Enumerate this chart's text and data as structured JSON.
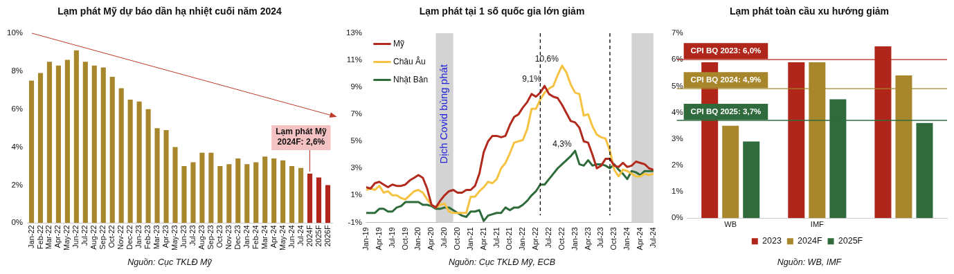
{
  "chart_data": [
    {
      "type": "bar",
      "title": "Lạm phát Mỹ dự báo dần hạ nhiệt cuối năm 2024",
      "categories": [
        "Jan-22",
        "Feb-22",
        "Mar-22",
        "Apr-22",
        "May-22",
        "Jun-22",
        "Jul-22",
        "Aug-22",
        "Sep-22",
        "Oct-22",
        "Nov-22",
        "Dec-22",
        "Jan-23",
        "Feb-23",
        "Mar-23",
        "Apr-23",
        "May-23",
        "Jun-23",
        "Jul-23",
        "Aug-23",
        "Sep-23",
        "Oct-23",
        "Nov-23",
        "Dec-23",
        "Jan-24",
        "Feb-24",
        "Mar-24",
        "Apr-24",
        "May-24",
        "Jun-24",
        "Jul-24",
        "2024F",
        "2025F",
        "2026F"
      ],
      "values": [
        7.5,
        7.9,
        8.5,
        8.3,
        8.6,
        9.1,
        8.5,
        8.3,
        8.2,
        7.7,
        7.1,
        6.5,
        6.4,
        6.0,
        5.0,
        4.9,
        4.0,
        3.0,
        3.2,
        3.7,
        3.7,
        3.0,
        3.1,
        3.4,
        3.1,
        3.2,
        3.5,
        3.4,
        3.3,
        3.0,
        2.9,
        2.6,
        2.4,
        2.0
      ],
      "colors": [
        "#a8862c",
        "#a8862c",
        "#a8862c",
        "#a8862c",
        "#a8862c",
        "#a8862c",
        "#a8862c",
        "#a8862c",
        "#a8862c",
        "#a8862c",
        "#a8862c",
        "#a8862c",
        "#a8862c",
        "#a8862c",
        "#a8862c",
        "#a8862c",
        "#a8862c",
        "#a8862c",
        "#a8862c",
        "#a8862c",
        "#a8862c",
        "#a8862c",
        "#a8862c",
        "#a8862c",
        "#a8862c",
        "#a8862c",
        "#a8862c",
        "#a8862c",
        "#a8862c",
        "#a8862c",
        "#a8862c",
        "#b0261b",
        "#b0261b",
        "#b0261b"
      ],
      "ylim": [
        0,
        10
      ],
      "yticks": [
        {
          "value": 0,
          "label": "0%"
        },
        {
          "value": 2,
          "label": "2%"
        },
        {
          "value": 4,
          "label": "4%"
        },
        {
          "value": 6,
          "label": "6%"
        },
        {
          "value": 8,
          "label": "8%"
        },
        {
          "value": 10,
          "label": "10%"
        }
      ],
      "annotations": [
        {
          "text": "Lạm phát Mỹ 2024F: 2,6%",
          "x": "2024F",
          "y": 2.6
        },
        "Nguồn: Cục TKLĐ Mỹ"
      ]
    },
    {
      "type": "line",
      "title": "Lạm phát tại 1 số quốc gia lớn giảm",
      "x": [
        "2019-01",
        "2019-02",
        "2019-03",
        "2019-04",
        "2019-05",
        "2019-06",
        "2019-07",
        "2019-08",
        "2019-09",
        "2019-10",
        "2019-11",
        "2019-12",
        "2020-01",
        "2020-02",
        "2020-03",
        "2020-04",
        "2020-05",
        "2020-06",
        "2020-07",
        "2020-08",
        "2020-09",
        "2020-10",
        "2020-11",
        "2020-12",
        "2021-01",
        "2021-02",
        "2021-03",
        "2021-04",
        "2021-05",
        "2021-06",
        "2021-07",
        "2021-08",
        "2021-09",
        "2021-10",
        "2021-11",
        "2021-12",
        "2022-01",
        "2022-02",
        "2022-03",
        "2022-04",
        "2022-05",
        "2022-06",
        "2022-07",
        "2022-08",
        "2022-09",
        "2022-10",
        "2022-11",
        "2022-12",
        "2023-01",
        "2023-02",
        "2023-03",
        "2023-04",
        "2023-05",
        "2023-06",
        "2023-07",
        "2023-08",
        "2023-09",
        "2023-10",
        "2023-11",
        "2023-12",
        "2024-01",
        "2024-02",
        "2024-03",
        "2024-04",
        "2024-05",
        "2024-06",
        "2024-07"
      ],
      "series": [
        {
          "name": "Mỹ",
          "color": "#b22a1e",
          "values": [
            1.6,
            1.5,
            1.9,
            2.0,
            1.8,
            1.6,
            1.8,
            1.7,
            1.7,
            1.8,
            2.1,
            2.3,
            2.5,
            2.3,
            1.5,
            0.3,
            0.1,
            0.6,
            1.0,
            1.3,
            1.4,
            1.2,
            1.2,
            1.4,
            1.4,
            1.7,
            2.6,
            4.2,
            5.0,
            5.4,
            5.4,
            5.3,
            5.4,
            6.2,
            6.8,
            7.0,
            7.5,
            7.9,
            8.5,
            8.3,
            8.6,
            9.1,
            8.5,
            8.3,
            8.2,
            7.7,
            7.1,
            6.5,
            6.4,
            6.0,
            5.0,
            4.9,
            4.0,
            3.0,
            3.2,
            3.7,
            3.7,
            3.2,
            3.1,
            3.4,
            3.1,
            3.2,
            3.5,
            3.4,
            3.3,
            3.0,
            2.9
          ]
        },
        {
          "name": "Châu Âu",
          "color": "#f5c242",
          "values": [
            1.4,
            1.5,
            1.4,
            1.7,
            1.2,
            1.3,
            1.0,
            1.0,
            0.8,
            0.7,
            1.0,
            1.3,
            1.4,
            1.2,
            0.7,
            0.3,
            0.1,
            0.3,
            0.4,
            -0.2,
            -0.3,
            -0.3,
            -0.3,
            -0.3,
            0.9,
            0.9,
            1.3,
            1.6,
            2.0,
            1.9,
            2.2,
            3.0,
            3.4,
            4.1,
            4.9,
            5.0,
            5.1,
            5.9,
            7.4,
            7.4,
            8.1,
            8.6,
            8.9,
            9.1,
            9.9,
            10.6,
            10.1,
            9.2,
            8.6,
            8.5,
            6.9,
            7.0,
            6.1,
            5.5,
            5.3,
            5.2,
            4.3,
            2.9,
            2.4,
            2.9,
            2.8,
            2.6,
            2.4,
            2.4,
            2.6,
            2.5,
            2.6
          ]
        },
        {
          "name": "Nhật Bản",
          "color": "#2e6b3a",
          "values": [
            -0.3,
            -0.3,
            -0.3,
            0.0,
            0.0,
            -0.2,
            -0.2,
            0.1,
            0.2,
            0.5,
            0.5,
            0.5,
            0.5,
            0.3,
            0.3,
            0.2,
            0.0,
            0.0,
            0.1,
            0.1,
            -0.1,
            -0.3,
            -0.5,
            -0.6,
            -0.2,
            -0.2,
            -0.1,
            -0.9,
            -0.5,
            -0.4,
            -0.3,
            -0.3,
            0.1,
            -0.1,
            0.1,
            0.1,
            0.3,
            0.6,
            1.0,
            1.3,
            1.8,
            1.8,
            2.2,
            2.6,
            3.0,
            3.3,
            3.6,
            3.9,
            4.3,
            3.3,
            3.2,
            3.6,
            3.2,
            3.3,
            3.3,
            3.2,
            3.0,
            3.3,
            2.9,
            2.6,
            2.2,
            2.8,
            2.7,
            2.5,
            2.8,
            2.8,
            2.8
          ]
        }
      ],
      "xlim": [
        "2019-01",
        "2024-07"
      ],
      "xticks": [
        {
          "value": "2019-01",
          "label": "Jan-19"
        },
        {
          "value": "2019-04",
          "label": "Apr-19"
        },
        {
          "value": "2019-07",
          "label": "Jul-19"
        },
        {
          "value": "2019-10",
          "label": "Oct-19"
        },
        {
          "value": "2020-01",
          "label": "Jan-20"
        },
        {
          "value": "2020-04",
          "label": "Apr-20"
        },
        {
          "value": "2020-07",
          "label": "Jul-20"
        },
        {
          "value": "2020-10",
          "label": "Oct-20"
        },
        {
          "value": "2021-01",
          "label": "Jan-21"
        },
        {
          "value": "2021-04",
          "label": "Apr-21"
        },
        {
          "value": "2021-07",
          "label": "Jul-21"
        },
        {
          "value": "2021-10",
          "label": "Oct-21"
        },
        {
          "value": "2022-01",
          "label": "Jan-22"
        },
        {
          "value": "2022-04",
          "label": "Apr-22"
        },
        {
          "value": "2022-07",
          "label": "Jul-22"
        },
        {
          "value": "2022-10",
          "label": "Oct-22"
        },
        {
          "value": "2023-01",
          "label": "Jan-23"
        },
        {
          "value": "2023-04",
          "label": "Apr-23"
        },
        {
          "value": "2023-07",
          "label": "Jul-23"
        },
        {
          "value": "2023-10",
          "label": "Oct-23"
        },
        {
          "value": "2024-01",
          "label": "Jan-24"
        },
        {
          "value": "2024-04",
          "label": "Apr-24"
        },
        {
          "value": "2024-07",
          "label": "Jul-24"
        }
      ],
      "ylim": [
        -1,
        13
      ],
      "yticks": [
        {
          "value": -1,
          "label": "-1%"
        },
        {
          "value": 1,
          "label": "1%"
        },
        {
          "value": 3,
          "label": "3%"
        },
        {
          "value": 5,
          "label": "5%"
        },
        {
          "value": 7,
          "label": "7%"
        },
        {
          "value": 9,
          "label": "9%"
        },
        {
          "value": 11,
          "label": "11%"
        },
        {
          "value": 13,
          "label": "13%"
        }
      ],
      "legend": "top left",
      "bands": [
        {
          "axis": "x",
          "from": "2020-05",
          "to": "2020-09",
          "label": "Dịch Covid bùng phát",
          "color": "#d3d3d3"
        },
        {
          "axis": "x",
          "from": "2024-02",
          "to": "2024-07",
          "color": "#d3d3d3"
        }
      ],
      "ref_lines": [
        {
          "axis": "x",
          "value": "2022-05",
          "color": "#000000",
          "line_style": "dashed"
        },
        {
          "axis": "x",
          "value": "2023-09",
          "color": "#000000",
          "line_style": "dashed"
        }
      ],
      "annotations": [
        {
          "text": "9,1%",
          "x": "2022-06",
          "y": 9.1
        },
        {
          "text": "10,6%",
          "x": "2022-10",
          "y": 10.6
        },
        {
          "text": "4,3%",
          "x": "2023-01",
          "y": 4.3
        },
        "Nguồn: Cục TKLĐ Mỹ, ECB"
      ]
    },
    {
      "type": "bar",
      "title": "Lạm phát toàn cầu xu hướng giảm",
      "categories": [
        "WB",
        "IMF",
        null
      ],
      "series": [
        {
          "name": "2023",
          "color": "#b0261b",
          "values": [
            5.9,
            5.9,
            6.5
          ]
        },
        {
          "name": "2024F",
          "color": "#a8862c",
          "values": [
            3.5,
            5.9,
            5.4
          ]
        },
        {
          "name": "2025F",
          "color": "#2f6b3c",
          "values": [
            2.9,
            4.5,
            3.6
          ]
        }
      ],
      "ylim": [
        0,
        7
      ],
      "yticks": [
        {
          "value": 0,
          "label": "0%"
        },
        {
          "value": 1,
          "label": "1%"
        },
        {
          "value": 2,
          "label": "2%"
        },
        {
          "value": 3,
          "label": "3%"
        },
        {
          "value": 4,
          "label": "4%"
        },
        {
          "value": 5,
          "label": "5%"
        },
        {
          "value": 6,
          "label": "6%"
        },
        {
          "value": 7,
          "label": "7%"
        }
      ],
      "legend": "bottom",
      "ref_lines": [
        {
          "axis": "y",
          "value": 6.0,
          "label": "CPI BQ 2023: 6,0%",
          "color": "#b0261b"
        },
        {
          "axis": "y",
          "value": 4.9,
          "label": "CPI BQ 2024: 4,9%",
          "color": "#a8862c"
        },
        {
          "axis": "y",
          "value": 3.7,
          "label": "CPI BQ 2025: 3,7%",
          "color": "#2f6b3c"
        }
      ],
      "annotations": [
        "Nguồn: WB, IMF"
      ]
    }
  ]
}
